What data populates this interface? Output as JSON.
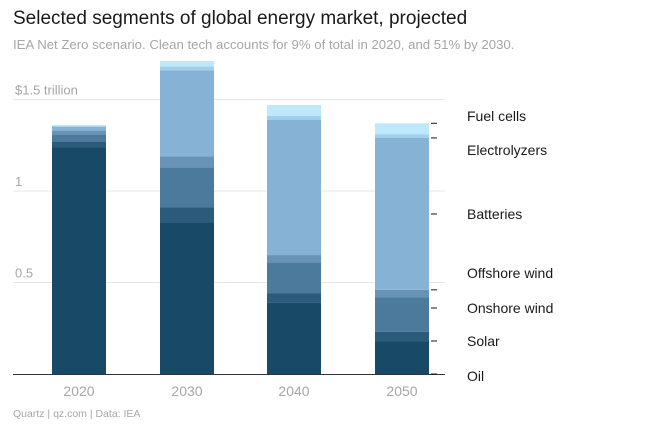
{
  "title": "Selected segments of global energy market, projected",
  "subtitle": "IEA Net Zero scenario. Clean tech accounts for 9% of total in 2020, and 51% by 2030.",
  "footer": "Quartz | qz.com | Data: IEA",
  "colors": {
    "Oil": "#184966",
    "Solar": "#2b5a7b",
    "Onshore wind": "#4c7a9d",
    "Offshore wind": "#6993b6",
    "Batteries": "#86b2d5",
    "Electrolyzers": "#9fd0eb",
    "Fuel cells": "#bfe7fa",
    "axis_text": "#a6a6a6",
    "gridline": "#e6e6e6",
    "axis_line": "#333333",
    "label_text": "#1a1a1a"
  },
  "chart_data": {
    "type": "bar",
    "stacked": true,
    "categories": [
      "2020",
      "2030",
      "2040",
      "2050"
    ],
    "series": [
      {
        "name": "Oil",
        "values": [
          1.24,
          0.83,
          0.39,
          0.18
        ]
      },
      {
        "name": "Solar",
        "values": [
          0.03,
          0.08,
          0.05,
          0.05
        ]
      },
      {
        "name": "Onshore wind",
        "values": [
          0.04,
          0.22,
          0.17,
          0.19
        ]
      },
      {
        "name": "Offshore wind",
        "values": [
          0.02,
          0.06,
          0.04,
          0.04
        ]
      },
      {
        "name": "Batteries",
        "values": [
          0.02,
          0.47,
          0.74,
          0.83
        ]
      },
      {
        "name": "Electrolyzers",
        "values": [
          0.005,
          0.02,
          0.02,
          0.02
        ]
      },
      {
        "name": "Fuel cells",
        "values": [
          0.005,
          0.03,
          0.06,
          0.06
        ]
      }
    ],
    "legend_order": [
      "Fuel cells",
      "Electrolyzers",
      "Batteries",
      "Offshore wind",
      "Onshore wind",
      "Solar",
      "Oil"
    ],
    "yticks": [
      {
        "value": 0.5,
        "label": "0.5"
      },
      {
        "value": 1,
        "label": "1"
      },
      {
        "value": 1.5,
        "label": "$1.5 trillion"
      }
    ],
    "ylim": [
      0,
      1.6
    ],
    "legend_placement": "right, labels at 2050 bar segments",
    "grid": true
  }
}
